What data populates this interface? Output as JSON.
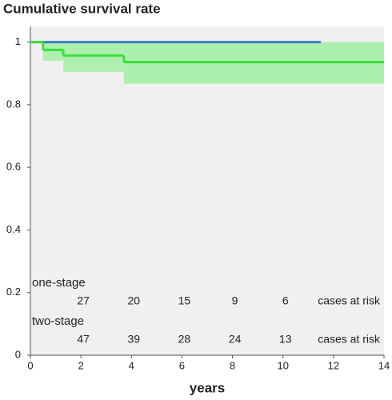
{
  "chart_data": {
    "type": "step",
    "title": "Cumulative survival rate",
    "x_label": "years",
    "xlim": [
      0,
      14
    ],
    "xticks": [
      0,
      2,
      4,
      6,
      8,
      10,
      12,
      14
    ],
    "ylim": [
      0,
      1.05
    ],
    "yticks": [
      0,
      0.2,
      0.4,
      0.6,
      0.8,
      1
    ],
    "series": [
      {
        "name": "one-stage",
        "color": "#3b7cc4",
        "text_color": "#2b3990",
        "x": [
          0,
          11.5
        ],
        "values": [
          1,
          1
        ],
        "cases_at_risk": [
          "27",
          "20",
          "15",
          "9",
          "6"
        ]
      },
      {
        "name": "two-stage",
        "color": "#3fdc3f",
        "text_color": "#3fdc3f",
        "band_color": "#adf0ad",
        "x": [
          0,
          0.5,
          1.3,
          3.7,
          14
        ],
        "values": [
          1,
          0.975,
          0.957,
          0.936,
          0.936
        ],
        "ci_lower": [
          1,
          0.94,
          0.905,
          0.867,
          0.867
        ],
        "ci_upper": [
          1,
          1,
          1,
          1,
          1
        ],
        "cases_at_risk": [
          "47",
          "39",
          "28",
          "24",
          "13"
        ]
      }
    ],
    "risk_label": "cases at risk"
  }
}
